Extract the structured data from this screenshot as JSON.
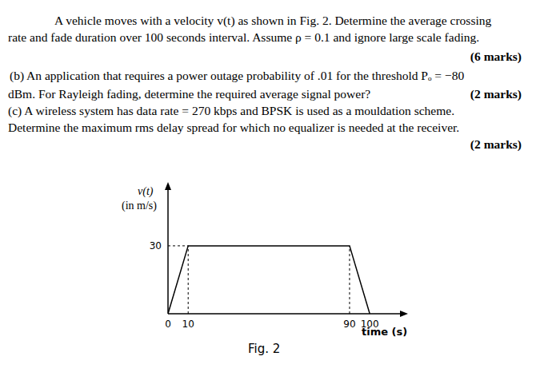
{
  "question": {
    "part_a": {
      "lines": [
        "A vehicle moves with a velocity v(t) as shown in Fig. 2. Determine the average crossing",
        "rate and fade duration over 100 seconds interval. Assume ρ = 0.1 and ignore large scale fading."
      ],
      "marks": "(6 marks)"
    },
    "part_b": {
      "lines": [
        "(b) An application that requires a power outage probability of .01 for the threshold Pₒ = −80",
        "dBm. For Rayleigh fading, determine the required average signal power?"
      ],
      "marks": "(2 marks)"
    },
    "part_c": {
      "lines": [
        "(c) A wireless system has data rate = 270 kbps and BPSK is used as a mouldation scheme.",
        "Determine the maximum rms delay spread for which no equalizer is needed at the receiver."
      ],
      "marks": "(2 marks)"
    }
  },
  "chart_data": {
    "type": "line",
    "title": "Fig. 2",
    "x_label": "time (s)",
    "y_label": [
      "v(t)",
      "(in m/s)"
    ],
    "x": [
      0,
      10,
      90,
      100
    ],
    "values": [
      0,
      30,
      30,
      0
    ],
    "color": "#000000",
    "xlim": [
      0,
      115
    ],
    "xticks": [
      0,
      10,
      90,
      100
    ],
    "ylim": [
      0,
      55
    ],
    "yticks": [
      30
    ],
    "grid": false,
    "line_style": "solid"
  }
}
